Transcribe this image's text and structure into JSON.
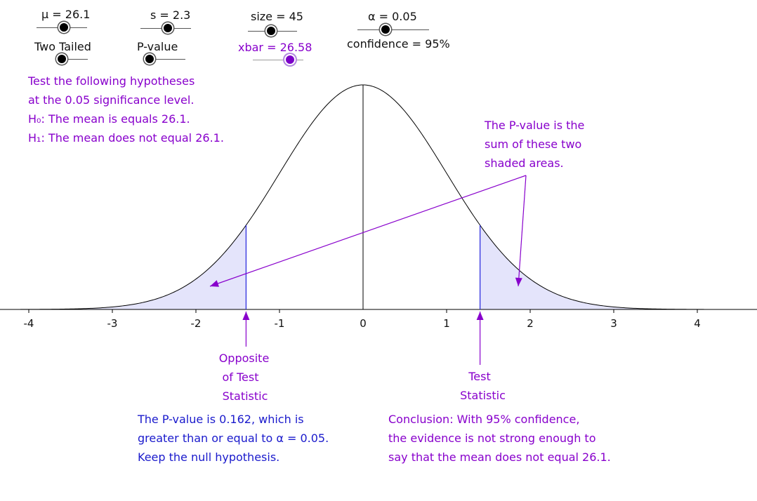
{
  "controls": {
    "mu_label": "μ = 26.1",
    "s_label": "s = 2.3",
    "size_label": "size = 45",
    "alpha_label": "α = 0.05",
    "tail_label": "Two Tailed",
    "method_label": "P-value",
    "xbar_label": "xbar = 26.58",
    "confidence_label": "confidence = 95%"
  },
  "hypotheses": {
    "line1": "Test the following hypotheses",
    "line2": "at the 0.05 significance level.",
    "h0": "H₀: The mean is equals 26.1.",
    "h1": "H₁: The mean does not equal 26.1."
  },
  "annotations": {
    "pvalue_note": [
      "The P-value is the",
      "sum of these two",
      "shaded areas."
    ],
    "opposite_label": [
      "Opposite",
      "of Test",
      "Statistic"
    ],
    "test_label": [
      "Test",
      "Statistic"
    ]
  },
  "result": {
    "lines": [
      "The P-value is 0.162, which is",
      "greater than or equal to α = 0.05.",
      "Keep the null hypothesis."
    ]
  },
  "conclusion": {
    "lines": [
      "Conclusion: With 95% confidence,",
      "the evidence is not strong enough to",
      "say that the mean does not equal 26.1."
    ]
  },
  "colors": {
    "purple": "#8800cc",
    "blue": "#1a1acc",
    "shade": "#e4e4fb"
  },
  "chart_data": {
    "type": "area",
    "distribution": "standard normal",
    "xlim": [
      -4,
      4
    ],
    "x_ticks": [
      -4,
      -3,
      -2,
      -1,
      0,
      1,
      2,
      3,
      4
    ],
    "test_statistic": 1.4,
    "opposite_test_statistic": -1.4,
    "shaded_regions": [
      [
        -4,
        -1.4
      ],
      [
        1.4,
        4
      ]
    ],
    "center_line": 0
  }
}
